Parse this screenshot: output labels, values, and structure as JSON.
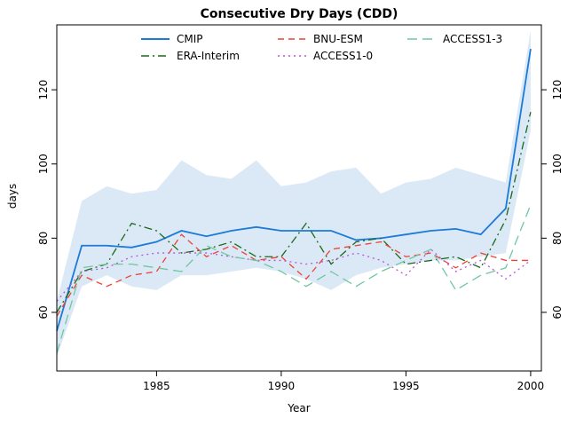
{
  "chart_data": {
    "type": "line",
    "title": "Consecutive Dry Days (CDD)",
    "xlabel": "Year",
    "ylabel": "days",
    "x": [
      1981,
      1982,
      1983,
      1984,
      1985,
      1986,
      1987,
      1988,
      1989,
      1990,
      1991,
      1992,
      1993,
      1994,
      1995,
      1996,
      1997,
      1998,
      1999,
      2000
    ],
    "xlim": [
      1981,
      2000.43
    ],
    "ylim": [
      44.2,
      137.5
    ],
    "xticks": [
      1985,
      1990,
      1995,
      2000
    ],
    "yticks": [
      60,
      80,
      100,
      120
    ],
    "grid": false,
    "legend_position": "top-inside",
    "band": {
      "name": "CMIP range",
      "color": "#dbe9f6",
      "lower": [
        48,
        67,
        70,
        67,
        66,
        70,
        70,
        71,
        72,
        71,
        69,
        66,
        70,
        72,
        73,
        74,
        74,
        75,
        76,
        109
      ],
      "upper": [
        63,
        90,
        94,
        92,
        93,
        101,
        97,
        96,
        101,
        94,
        95,
        98,
        99,
        92,
        95,
        96,
        99,
        97,
        95,
        136
      ]
    },
    "series": [
      {
        "name": "CMIP",
        "color": "#1c7ad9",
        "dash": "solid",
        "width": 1.8,
        "values": [
          55,
          78,
          78,
          77.5,
          79,
          82,
          80.5,
          82,
          83,
          82,
          82,
          82,
          79.5,
          80,
          81,
          82,
          82.5,
          81,
          88,
          131
        ]
      },
      {
        "name": "ERA-Interim",
        "color": "#1a691a",
        "dash": "dashdot",
        "width": 1.3,
        "values": [
          60,
          71,
          73,
          84,
          82,
          76,
          77,
          79,
          75,
          75,
          84,
          73,
          79,
          80,
          73,
          74,
          75,
          72,
          85,
          114
        ]
      },
      {
        "name": "BNU-ESM",
        "color": "#ee4035",
        "dash": "dashed",
        "width": 1.3,
        "values": [
          59,
          70,
          67,
          70,
          71,
          81,
          75,
          78,
          74,
          75,
          69,
          77,
          78,
          79,
          75,
          76,
          72,
          76,
          74,
          74
        ]
      },
      {
        "name": "ACCESS1-0",
        "color": "#ba55d3",
        "dash": "dotted",
        "width": 1.3,
        "values": [
          63,
          71,
          72,
          75,
          76,
          76,
          76,
          75,
          74,
          74,
          73,
          74,
          76,
          74,
          70,
          77,
          71,
          74,
          69,
          74
        ]
      },
      {
        "name": "ACCESS1-3",
        "color": "#6fc7a0",
        "dash": "longdash",
        "width": 1.3,
        "values": [
          49,
          72,
          73,
          73,
          72,
          71,
          78,
          75,
          74,
          71,
          67,
          71,
          67,
          71,
          74,
          77,
          66,
          70,
          72,
          89
        ]
      }
    ],
    "legend_order": [
      "CMIP",
      "BNU-ESM",
      "ACCESS1-3",
      "ERA-Interim",
      "ACCESS1-0"
    ]
  }
}
